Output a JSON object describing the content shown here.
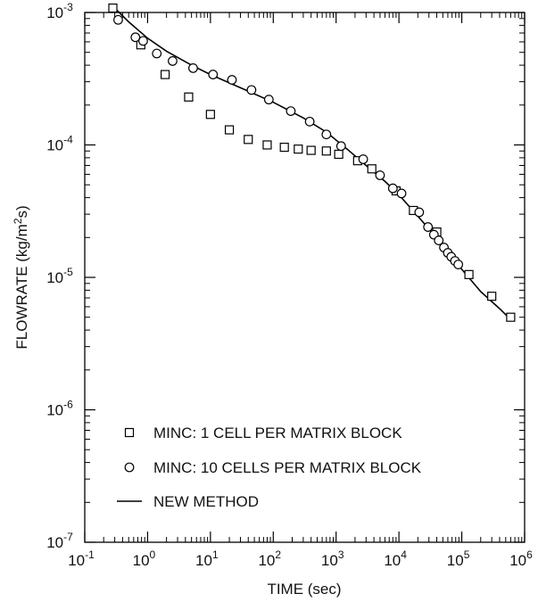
{
  "chart_data": {
    "type": "scatter",
    "title": "",
    "xlabel": "TIME (sec)",
    "ylabel": "FLOWRATE (kg/m²s)",
    "xscale": "log",
    "yscale": "log",
    "xlim": [
      0.1,
      1000000
    ],
    "ylim": [
      1e-07,
      0.001
    ],
    "grid": false,
    "legend_position": "bottom-left",
    "x_ticks": [
      {
        "value": 0.1,
        "base": "10",
        "exp": "-1"
      },
      {
        "value": 1,
        "base": "10",
        "exp": "0"
      },
      {
        "value": 10,
        "base": "10",
        "exp": "1"
      },
      {
        "value": 100,
        "base": "10",
        "exp": "2"
      },
      {
        "value": 1000,
        "base": "10",
        "exp": "3"
      },
      {
        "value": 10000,
        "base": "10",
        "exp": "4"
      },
      {
        "value": 100000,
        "base": "10",
        "exp": "5"
      },
      {
        "value": 1000000,
        "base": "10",
        "exp": "6"
      }
    ],
    "y_ticks": [
      {
        "value": 0.001,
        "base": "10",
        "exp": "-3"
      },
      {
        "value": 0.0001,
        "base": "10",
        "exp": "-4"
      },
      {
        "value": 1e-05,
        "base": "10",
        "exp": "-5"
      },
      {
        "value": 1e-06,
        "base": "10",
        "exp": "-6"
      },
      {
        "value": 1e-07,
        "base": "10",
        "exp": "-7"
      }
    ],
    "series": [
      {
        "name": "MINC: 1 CELL PER MATRIX BLOCK",
        "marker": "square",
        "points": [
          [
            0.28,
            0.00108
          ],
          [
            0.78,
            0.00057
          ],
          [
            1.9,
            0.00034
          ],
          [
            4.5,
            0.00023
          ],
          [
            10,
            0.00017
          ],
          [
            20,
            0.00013
          ],
          [
            40,
            0.00011
          ],
          [
            80,
            0.0001
          ],
          [
            150,
            9.6e-05
          ],
          [
            250,
            9.3e-05
          ],
          [
            400,
            9.1e-05
          ],
          [
            700,
            9e-05
          ],
          [
            1100,
            8.5e-05
          ],
          [
            2200,
            7.6e-05
          ],
          [
            3700,
            6.6e-05
          ],
          [
            9000,
            4.5e-05
          ],
          [
            17000,
            3.2e-05
          ],
          [
            40000,
            2.2e-05
          ],
          [
            130000,
            1.05e-05
          ],
          [
            300000,
            7.2e-06
          ],
          [
            600000,
            5e-06
          ]
        ]
      },
      {
        "name": "MINC: 10 CELLS PER MATRIX BLOCK",
        "marker": "circle",
        "points": [
          [
            0.34,
            0.00088
          ],
          [
            0.64,
            0.00065
          ],
          [
            0.85,
            0.00061
          ],
          [
            1.4,
            0.00049
          ],
          [
            2.5,
            0.00043
          ],
          [
            5.3,
            0.00038
          ],
          [
            11,
            0.00034
          ],
          [
            22,
            0.00031
          ],
          [
            45,
            0.00026
          ],
          [
            85,
            0.00022
          ],
          [
            190,
            0.00018
          ],
          [
            380,
            0.00015
          ],
          [
            700,
            0.00012
          ],
          [
            1200,
            9.8e-05
          ],
          [
            2700,
            7.8e-05
          ],
          [
            5000,
            5.9e-05
          ],
          [
            8000,
            4.7e-05
          ],
          [
            11000,
            4.3e-05
          ],
          [
            21000,
            3.1e-05
          ],
          [
            29000,
            2.4e-05
          ],
          [
            36000,
            2.1e-05
          ],
          [
            43000,
            1.9e-05
          ],
          [
            52000,
            1.68e-05
          ],
          [
            60000,
            1.53e-05
          ],
          [
            68000,
            1.43e-05
          ],
          [
            78000,
            1.33e-05
          ],
          [
            88000,
            1.25e-05
          ]
        ]
      },
      {
        "name": "NEW METHOD",
        "marker": "line",
        "points": [
          [
            0.3,
            0.00108
          ],
          [
            0.5,
            0.00085
          ],
          [
            1,
            0.00064
          ],
          [
            2,
            0.00051
          ],
          [
            5,
            0.0004
          ],
          [
            10,
            0.00034
          ],
          [
            30,
            0.00027
          ],
          [
            100,
            0.00021
          ],
          [
            300,
            0.00016
          ],
          [
            700,
            0.000125
          ],
          [
            1500,
            9.3e-05
          ],
          [
            3000,
            7e-05
          ],
          [
            6000,
            5.3e-05
          ],
          [
            10000,
            4.2e-05
          ],
          [
            20000,
            2.9e-05
          ],
          [
            50000,
            1.75e-05
          ],
          [
            100000,
            1.15e-05
          ],
          [
            200000,
            7.8e-06
          ],
          [
            400000,
            5.8e-06
          ],
          [
            600000,
            4.8e-06
          ]
        ]
      }
    ]
  }
}
